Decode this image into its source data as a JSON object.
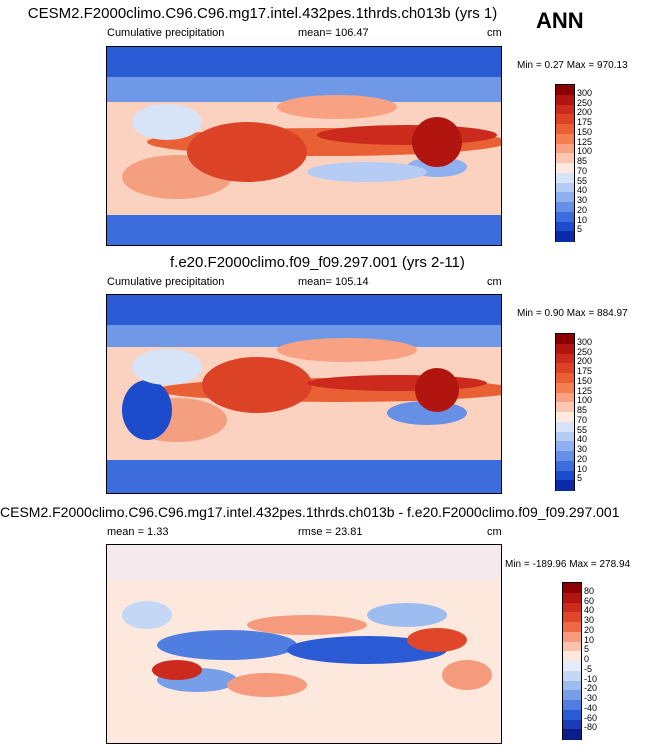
{
  "season": "ANN",
  "panels": [
    {
      "title": "CESM2.F2000climo.C96.C96.mg17.intel.432pes.1thrds.ch013b (yrs 1)",
      "left_label": "Cumulative precipitation",
      "mid_label": "mean= 106.47",
      "units": "cm",
      "minmax": "Min =   0.27 Max = 970.13",
      "colorbar": {
        "labels": [
          "300",
          "250",
          "200",
          "175",
          "150",
          "125",
          "100",
          "85",
          "70",
          "55",
          "40",
          "30",
          "20",
          "10",
          "5"
        ],
        "colors": [
          "#8b0000",
          "#b2140f",
          "#cc2a1c",
          "#dc4326",
          "#ea6035",
          "#f47f50",
          "#f8a183",
          "#fbc7b2",
          "#fdeadf",
          "#d7e4f8",
          "#b5cdf4",
          "#8eb0ee",
          "#6690e6",
          "#3d6cdc",
          "#1c4bcc",
          "#0c2ba8"
        ]
      }
    },
    {
      "title": "f.e20.F2000climo.f09_f09.297.001 (yrs 2-11)",
      "left_label": "Cumulative precipitation",
      "mid_label": "mean= 105.14",
      "units": "cm",
      "minmax": "Min =   0.90 Max = 884.97",
      "colorbar": {
        "labels": [
          "300",
          "250",
          "200",
          "175",
          "150",
          "125",
          "100",
          "85",
          "70",
          "55",
          "40",
          "30",
          "20",
          "10",
          "5"
        ],
        "colors": [
          "#8b0000",
          "#b2140f",
          "#cc2a1c",
          "#dc4326",
          "#ea6035",
          "#f47f50",
          "#f8a183",
          "#fbc7b2",
          "#fdeadf",
          "#d7e4f8",
          "#b5cdf4",
          "#8eb0ee",
          "#6690e6",
          "#3d6cdc",
          "#1c4bcc",
          "#0c2ba8"
        ]
      }
    },
    {
      "title": "CESM2.F2000climo.C96.C96.mg17.intel.432pes.1thrds.ch013b - f.e20.F2000climo.f09_f09.297.001",
      "left_label": "mean =   1.33",
      "mid_label": "rmse =  23.81",
      "units": "cm",
      "minmax": "Min = -189.96 Max = 278.94",
      "colorbar": {
        "labels": [
          "80",
          "60",
          "40",
          "30",
          "20",
          "10",
          "5",
          "0",
          "-5",
          "-10",
          "-20",
          "-30",
          "-40",
          "-60",
          "-80"
        ],
        "colors": [
          "#8b0000",
          "#b2140f",
          "#cc2a1c",
          "#e0462a",
          "#ee6a45",
          "#f59a7c",
          "#fac2ad",
          "#fde8dd",
          "#e2ecfa",
          "#c4d7f5",
          "#9dbdf0",
          "#769ee9",
          "#4f7ee0",
          "#2b5bd4",
          "#1a3cb8",
          "#0a1e8c"
        ]
      }
    }
  ]
}
